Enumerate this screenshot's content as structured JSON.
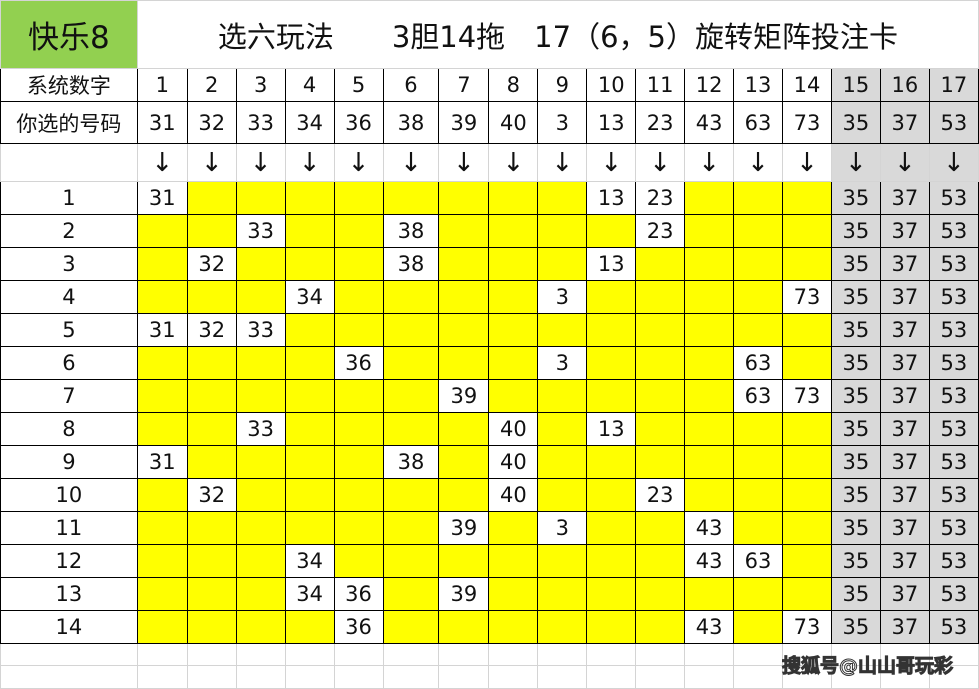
{
  "brand": "快乐8",
  "title": "选六玩法　　3胆14拖　17（6，5）旋转矩阵投注卡",
  "header": {
    "row1_label": "系统数字",
    "row2_label": "你选的号码",
    "system_numbers": [
      "1",
      "2",
      "3",
      "4",
      "5",
      "6",
      "7",
      "8",
      "9",
      "10",
      "11",
      "12",
      "13",
      "14",
      "15",
      "16",
      "17"
    ],
    "chosen_numbers": [
      "31",
      "32",
      "33",
      "34",
      "36",
      "38",
      "39",
      "40",
      "3",
      "13",
      "23",
      "43",
      "63",
      "73",
      "35",
      "37",
      "53"
    ],
    "arrow": "↓"
  },
  "rows": [
    {
      "label": "1",
      "cells": [
        "31",
        "",
        "",
        "",
        "",
        "",
        "",
        "",
        "",
        "13",
        "23",
        "",
        "",
        ""
      ]
    },
    {
      "label": "2",
      "cells": [
        "",
        "",
        "33",
        "",
        "",
        "38",
        "",
        "",
        "",
        "",
        "23",
        "",
        "",
        ""
      ]
    },
    {
      "label": "3",
      "cells": [
        "",
        "32",
        "",
        "",
        "",
        "38",
        "",
        "",
        "",
        "13",
        "",
        "",
        "",
        ""
      ]
    },
    {
      "label": "4",
      "cells": [
        "",
        "",
        "",
        "34",
        "",
        "",
        "",
        "",
        "3",
        "",
        "",
        "",
        "",
        "73"
      ]
    },
    {
      "label": "5",
      "cells": [
        "31",
        "32",
        "33",
        "",
        "",
        "",
        "",
        "",
        "",
        "",
        "",
        "",
        "",
        ""
      ]
    },
    {
      "label": "6",
      "cells": [
        "",
        "",
        "",
        "",
        "36",
        "",
        "",
        "",
        "3",
        "",
        "",
        "",
        "63",
        ""
      ]
    },
    {
      "label": "7",
      "cells": [
        "",
        "",
        "",
        "",
        "",
        "",
        "39",
        "",
        "",
        "",
        "",
        "",
        "63",
        "73"
      ]
    },
    {
      "label": "8",
      "cells": [
        "",
        "",
        "33",
        "",
        "",
        "",
        "",
        "40",
        "",
        "13",
        "",
        "",
        "",
        ""
      ]
    },
    {
      "label": "9",
      "cells": [
        "31",
        "",
        "",
        "",
        "",
        "38",
        "",
        "40",
        "",
        "",
        "",
        "",
        "",
        ""
      ]
    },
    {
      "label": "10",
      "cells": [
        "",
        "32",
        "",
        "",
        "",
        "",
        "",
        "40",
        "",
        "",
        "23",
        "",
        "",
        ""
      ]
    },
    {
      "label": "11",
      "cells": [
        "",
        "",
        "",
        "",
        "",
        "",
        "39",
        "",
        "3",
        "",
        "",
        "43",
        "",
        ""
      ]
    },
    {
      "label": "12",
      "cells": [
        "",
        "",
        "",
        "34",
        "",
        "",
        "",
        "",
        "",
        "",
        "",
        "43",
        "63",
        ""
      ]
    },
    {
      "label": "13",
      "cells": [
        "",
        "",
        "",
        "34",
        "36",
        "",
        "39",
        "",
        "",
        "",
        "",
        "",
        "",
        ""
      ]
    },
    {
      "label": "14",
      "cells": [
        "",
        "",
        "",
        "",
        "36",
        "",
        "",
        "",
        "",
        "",
        "",
        "43",
        "",
        "73"
      ]
    }
  ],
  "bankers": [
    "35",
    "37",
    "53"
  ],
  "watermark": "搜狐号@山山哥玩彩",
  "colors": {
    "brand_green": "#92d050",
    "highlight_yellow": "#ffff00",
    "banker_grey": "#d9d9d9"
  }
}
